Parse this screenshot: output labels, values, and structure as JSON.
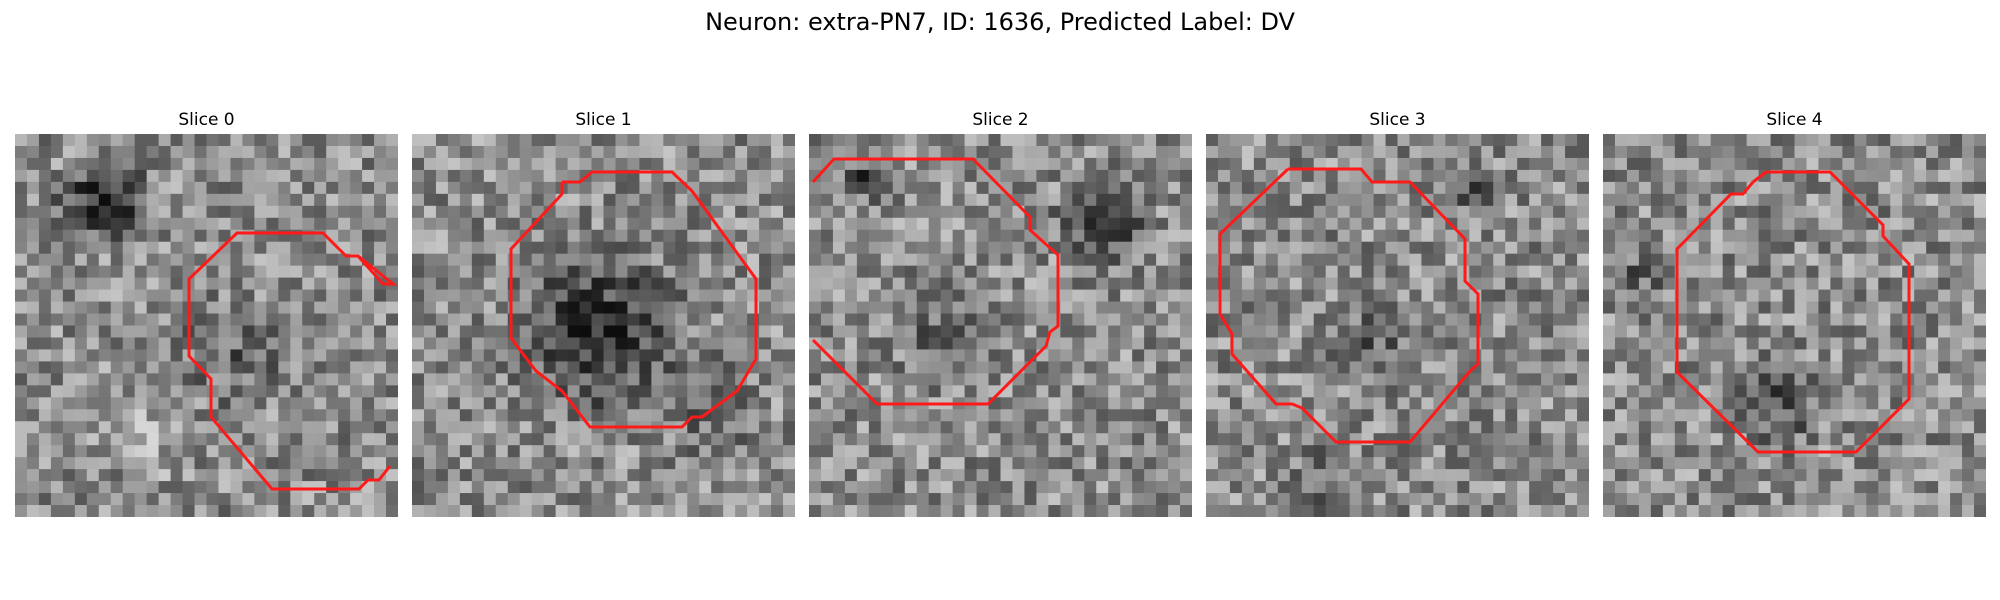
{
  "figure": {
    "title": "Neuron: extra-PN7, ID: 1636, Predicted Label: DV"
  },
  "colors": {
    "contour": "#ff1a1a",
    "background": "#ffffff"
  },
  "panels": [
    {
      "title": "Slice 0"
    },
    {
      "title": "Slice 1"
    },
    {
      "title": "Slice 2"
    },
    {
      "title": "Slice 3"
    },
    {
      "title": "Slice 4"
    }
  ]
}
